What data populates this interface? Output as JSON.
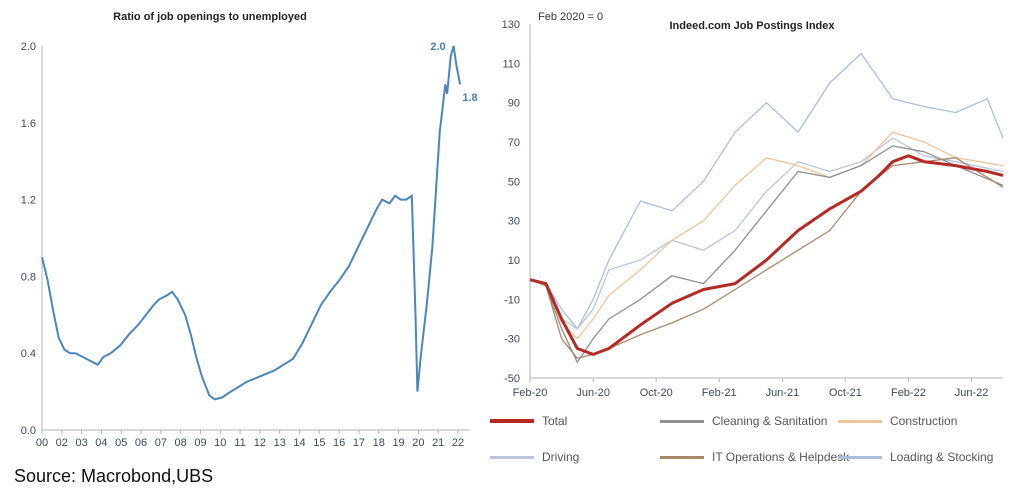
{
  "source": "Source: Macrobond,UBS",
  "chart_data": [
    {
      "type": "line",
      "title": "Ratio of job openings to unemployed",
      "xlabel": "",
      "ylabel": "",
      "xlim": [
        2000,
        2022.6
      ],
      "ylim": [
        0.0,
        2.0
      ],
      "yticks": [
        "0.0",
        "0.4",
        "0.8",
        "1.2",
        "1.6",
        "2.0"
      ],
      "xtick_labels": [
        "00",
        "02",
        "03",
        "04",
        "05",
        "06",
        "07",
        "08",
        "09",
        "10",
        "11",
        "12",
        "13",
        "14",
        "15",
        "16",
        "17",
        "18",
        "19",
        "20",
        "21",
        "22"
      ],
      "grid": false,
      "color": "#4a86be",
      "annotations": [
        "2.0",
        "1.8"
      ],
      "series": [
        {
          "x": [
            2000.0,
            2000.3,
            2000.6,
            2000.9,
            2001.2,
            2001.5,
            2001.8,
            2002.2,
            2002.6,
            2003.0,
            2003.3,
            2003.7,
            2004.2,
            2004.7,
            2005.2,
            2005.6,
            2006.0,
            2006.3,
            2006.7,
            2007.0,
            2007.3,
            2007.7,
            2008.0,
            2008.3,
            2008.6,
            2009.0,
            2009.3,
            2009.7,
            2010.0,
            2010.5,
            2011.0,
            2011.5,
            2012.0,
            2012.5,
            2013.0,
            2013.5,
            2014.0,
            2014.5,
            2015.0,
            2015.5,
            2016.0,
            2016.5,
            2017.0,
            2017.5,
            2018.0,
            2018.3,
            2018.7,
            2019.0,
            2019.3,
            2019.6,
            2019.9,
            2020.1,
            2020.2,
            2020.4,
            2020.7,
            2021.0,
            2021.2,
            2021.4,
            2021.7,
            2021.8,
            2022.0,
            2022.15,
            2022.3,
            2022.5
          ],
          "y": [
            0.9,
            0.78,
            0.62,
            0.48,
            0.42,
            0.4,
            0.4,
            0.38,
            0.36,
            0.34,
            0.38,
            0.4,
            0.44,
            0.5,
            0.55,
            0.6,
            0.65,
            0.68,
            0.7,
            0.72,
            0.68,
            0.6,
            0.5,
            0.38,
            0.28,
            0.18,
            0.16,
            0.17,
            0.19,
            0.22,
            0.25,
            0.27,
            0.29,
            0.31,
            0.34,
            0.37,
            0.45,
            0.55,
            0.65,
            0.72,
            0.78,
            0.85,
            0.95,
            1.05,
            1.15,
            1.2,
            1.18,
            1.22,
            1.2,
            1.2,
            1.22,
            0.6,
            0.2,
            0.4,
            0.65,
            0.95,
            1.25,
            1.55,
            1.8,
            1.75,
            1.95,
            2.0,
            1.9,
            1.8
          ]
        }
      ]
    },
    {
      "type": "line",
      "title": "Indeed.com Job Postings Index",
      "subtitle": "Feb 2020 = 0",
      "xlabel": "",
      "ylabel": "",
      "xlim": [
        2020.083,
        2022.583
      ],
      "ylim": [
        -50,
        130
      ],
      "yticks": [
        "-50",
        "-30",
        "-10",
        "10",
        "30",
        "50",
        "70",
        "90",
        "110",
        "130"
      ],
      "xtick_labels": [
        "Feb-20",
        "Jun-20",
        "Oct-20",
        "Feb-21",
        "Jun-21",
        "Oct-21",
        "Feb-22",
        "Jun-22"
      ],
      "grid": false,
      "legend_position": "bottom",
      "series": [
        {
          "name": "Total",
          "color": "#b52a24",
          "width": 3,
          "x": [
            2020.083,
            2020.167,
            2020.25,
            2020.333,
            2020.417,
            2020.5,
            2020.667,
            2020.833,
            2021.0,
            2021.167,
            2021.333,
            2021.5,
            2021.667,
            2021.833,
            2021.917,
            2022.0,
            2022.083,
            2022.167,
            2022.333,
            2022.5,
            2022.583
          ],
          "y": [
            0,
            -2,
            -20,
            -35,
            -38,
            -35,
            -23,
            -12,
            -5,
            -2,
            10,
            25,
            36,
            45,
            52,
            60,
            63,
            60,
            58,
            55,
            53
          ]
        },
        {
          "name": "Cleaning & Sanitation",
          "color": "#8f8f8f",
          "width": 1.3,
          "x": [
            2020.083,
            2020.167,
            2020.25,
            2020.333,
            2020.417,
            2020.5,
            2020.667,
            2020.833,
            2021.0,
            2021.167,
            2021.333,
            2021.5,
            2021.667,
            2021.833,
            2022.0,
            2022.167,
            2022.333,
            2022.583
          ],
          "y": [
            0,
            -3,
            -25,
            -42,
            -30,
            -20,
            -10,
            2,
            -2,
            15,
            35,
            55,
            52,
            58,
            68,
            65,
            58,
            48
          ]
        },
        {
          "name": "Construction",
          "color": "#f2c29b",
          "width": 1.3,
          "x": [
            2020.083,
            2020.167,
            2020.25,
            2020.333,
            2020.417,
            2020.5,
            2020.667,
            2020.833,
            2021.0,
            2021.167,
            2021.333,
            2021.5,
            2021.667,
            2021.833,
            2022.0,
            2022.167,
            2022.333,
            2022.583
          ],
          "y": [
            0,
            -3,
            -22,
            -30,
            -20,
            -8,
            5,
            20,
            30,
            48,
            62,
            58,
            52,
            58,
            75,
            70,
            62,
            58
          ]
        },
        {
          "name": "Driving",
          "color": "#b8c6d8",
          "width": 1.3,
          "x": [
            2020.083,
            2020.167,
            2020.25,
            2020.333,
            2020.417,
            2020.5,
            2020.667,
            2020.833,
            2021.0,
            2021.167,
            2021.333,
            2021.5,
            2021.667,
            2021.833,
            2022.0,
            2022.167,
            2022.333,
            2022.583
          ],
          "y": [
            0,
            -3,
            -20,
            -25,
            -15,
            5,
            10,
            20,
            15,
            25,
            45,
            60,
            55,
            60,
            72,
            63,
            60,
            55
          ]
        },
        {
          "name": "IT Operations & Helpdesk",
          "color": "#a8896a",
          "width": 1.3,
          "x": [
            2020.083,
            2020.167,
            2020.25,
            2020.333,
            2020.417,
            2020.5,
            2020.667,
            2020.833,
            2021.0,
            2021.167,
            2021.333,
            2021.5,
            2021.667,
            2021.833,
            2022.0,
            2022.167,
            2022.333,
            2022.583
          ],
          "y": [
            0,
            -3,
            -30,
            -40,
            -38,
            -35,
            -28,
            -22,
            -15,
            -5,
            5,
            15,
            25,
            45,
            58,
            60,
            62,
            47
          ]
        },
        {
          "name": "Loading & Stocking",
          "color": "#a9bfdc",
          "width": 1.3,
          "x": [
            2020.083,
            2020.167,
            2020.25,
            2020.333,
            2020.417,
            2020.5,
            2020.667,
            2020.833,
            2021.0,
            2021.167,
            2021.333,
            2021.5,
            2021.667,
            2021.833,
            2022.0,
            2022.167,
            2022.333,
            2022.5,
            2022.583
          ],
          "y": [
            0,
            -2,
            -15,
            -25,
            -10,
            10,
            40,
            35,
            50,
            75,
            90,
            75,
            100,
            115,
            92,
            88,
            85,
            92,
            72
          ]
        }
      ]
    }
  ]
}
